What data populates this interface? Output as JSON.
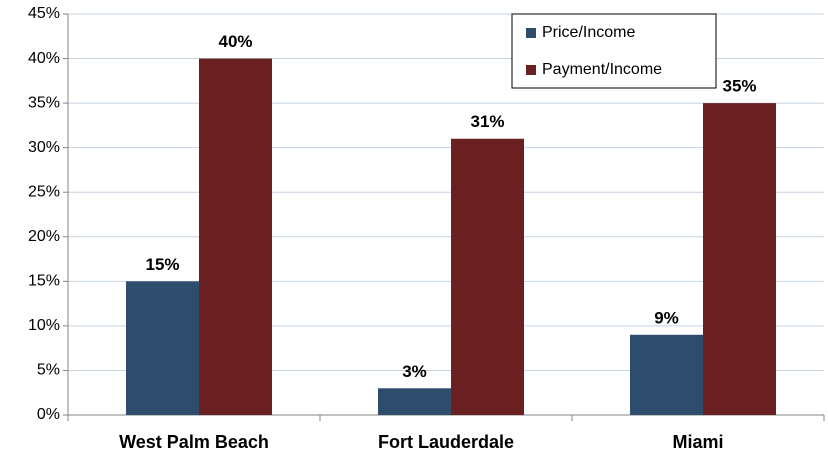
{
  "chart_data": {
    "type": "bar",
    "categories": [
      "West Palm Beach",
      "Fort Lauderdale",
      "Miami"
    ],
    "series": [
      {
        "name": "Price/Income",
        "color": "#2e4c6b",
        "values": [
          15,
          3,
          9
        ],
        "value_labels": [
          "15%",
          "3%",
          "9%"
        ]
      },
      {
        "name": "Payment/Income",
        "color": "#6a2020",
        "values": [
          40,
          31,
          35
        ],
        "value_labels": [
          "40%",
          "31%",
          "35%"
        ]
      }
    ],
    "ylim": [
      0,
      45
    ],
    "yticks": [
      {
        "value": 0,
        "label": "0%"
      },
      {
        "value": 5,
        "label": "5%"
      },
      {
        "value": 10,
        "label": "10%"
      },
      {
        "value": 15,
        "label": "15%"
      },
      {
        "value": 20,
        "label": "20%"
      },
      {
        "value": 25,
        "label": "25%"
      },
      {
        "value": 30,
        "label": "30%"
      },
      {
        "value": 35,
        "label": "35%"
      },
      {
        "value": 40,
        "label": "40%"
      },
      {
        "value": 45,
        "label": "45%"
      }
    ],
    "grid": true,
    "legend": "top-right"
  }
}
